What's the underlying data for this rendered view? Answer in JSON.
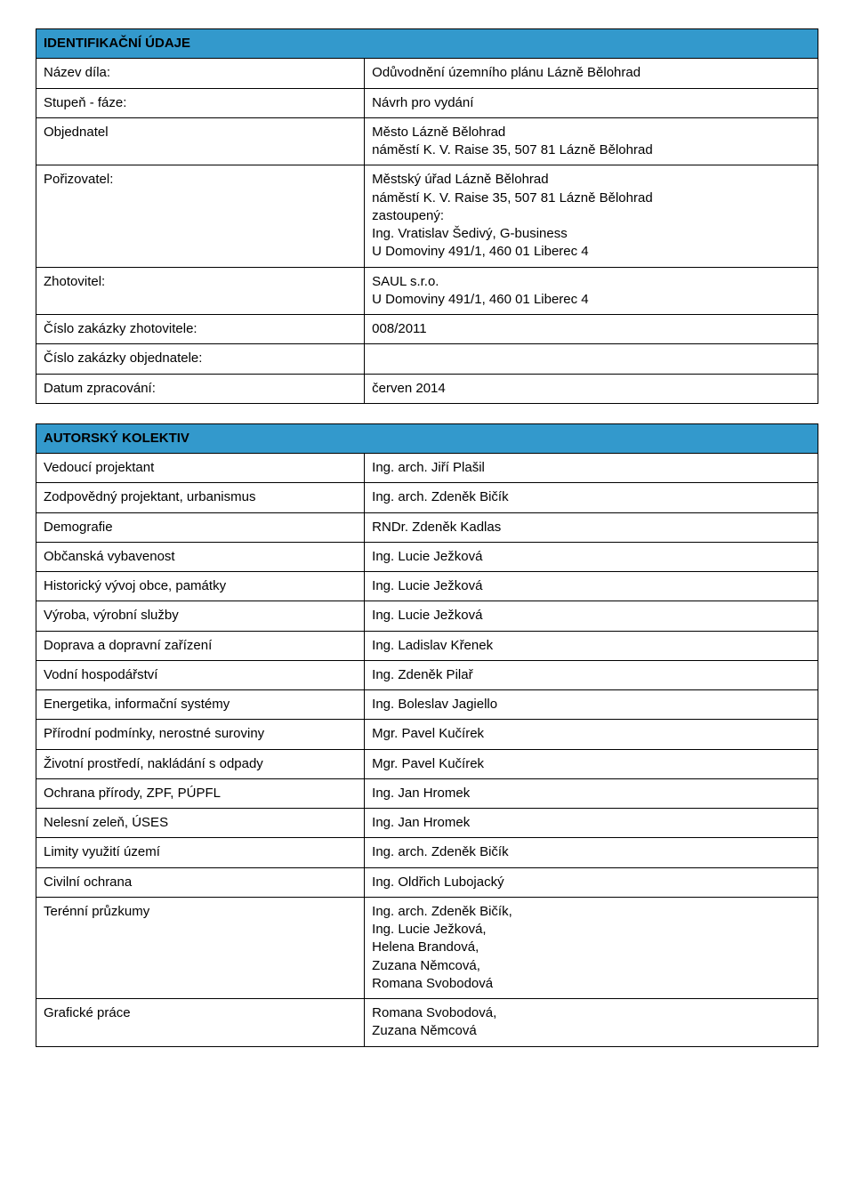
{
  "colors": {
    "header_bg": "#3399cc",
    "border": "#000000",
    "page_bg": "#ffffff",
    "text": "#000000"
  },
  "section1": {
    "title": "IDENTIFIKAČNÍ ÚDAJE",
    "rows": [
      {
        "label": "Název díla:",
        "value": "Odůvodnění územního plánu Lázně Bělohrad"
      },
      {
        "label": "Stupeň - fáze:",
        "value": "Návrh pro vydání"
      },
      {
        "label": "Objednatel",
        "value": "Město Lázně Bělohrad\nnáměstí K. V. Raise 35, 507 81 Lázně Bělohrad"
      },
      {
        "label": "Pořizovatel:",
        "value": "Městský úřad Lázně Bělohrad\nnáměstí K. V. Raise 35, 507 81 Lázně Bělohrad\nzastoupený:\nIng. Vratislav Šedivý, G-business\nU Domoviny 491/1, 460 01 Liberec 4"
      },
      {
        "label": "Zhotovitel:",
        "value": "SAUL s.r.o.\nU Domoviny 491/1, 460 01 Liberec 4"
      },
      {
        "label": "Číslo zakázky zhotovitele:",
        "value": "008/2011"
      },
      {
        "label": "Číslo zakázky objednatele:",
        "value": ""
      },
      {
        "label": "Datum zpracování:",
        "value": "červen 2014"
      }
    ]
  },
  "section2": {
    "title": "AUTORSKÝ KOLEKTIV",
    "rows": [
      {
        "label": "Vedoucí projektant",
        "value": "Ing. arch. Jiří Plašil"
      },
      {
        "label": "Zodpovědný projektant, urbanismus",
        "value": "Ing. arch. Zdeněk Bičík"
      },
      {
        "label": "Demografie",
        "value": "RNDr. Zdeněk Kadlas"
      },
      {
        "label": "Občanská vybavenost",
        "value": "Ing. Lucie Ježková"
      },
      {
        "label": "Historický vývoj obce, památky",
        "value": "Ing. Lucie Ježková"
      },
      {
        "label": "Výroba, výrobní služby",
        "value": "Ing. Lucie Ježková"
      },
      {
        "label": "Doprava a dopravní zařízení",
        "value": "Ing. Ladislav Křenek"
      },
      {
        "label": "Vodní hospodářství",
        "value": "Ing. Zdeněk Pilař"
      },
      {
        "label": "Energetika, informační systémy",
        "value": "Ing. Boleslav Jagiello"
      },
      {
        "label": "Přírodní podmínky, nerostné suroviny",
        "value": "Mgr. Pavel Kučírek"
      },
      {
        "label": "Životní prostředí, nakládání s odpady",
        "value": "Mgr. Pavel Kučírek"
      },
      {
        "label": "Ochrana přírody, ZPF, PÚPFL",
        "value": "Ing. Jan Hromek"
      },
      {
        "label": "Nelesní zeleň, ÚSES",
        "value": "Ing. Jan Hromek"
      },
      {
        "label": "Limity využití území",
        "value": "Ing. arch. Zdeněk Bičík"
      },
      {
        "label": "Civilní ochrana",
        "value": "Ing. Oldřich Lubojacký"
      },
      {
        "label": "Terénní průzkumy",
        "value": "Ing. arch. Zdeněk Bičík,\nIng. Lucie Ježková,\nHelena Brandová,\nZuzana Němcová,\nRomana Svobodová"
      },
      {
        "label": "Grafické práce",
        "value": "Romana Svobodová,\nZuzana Němcová"
      }
    ]
  }
}
